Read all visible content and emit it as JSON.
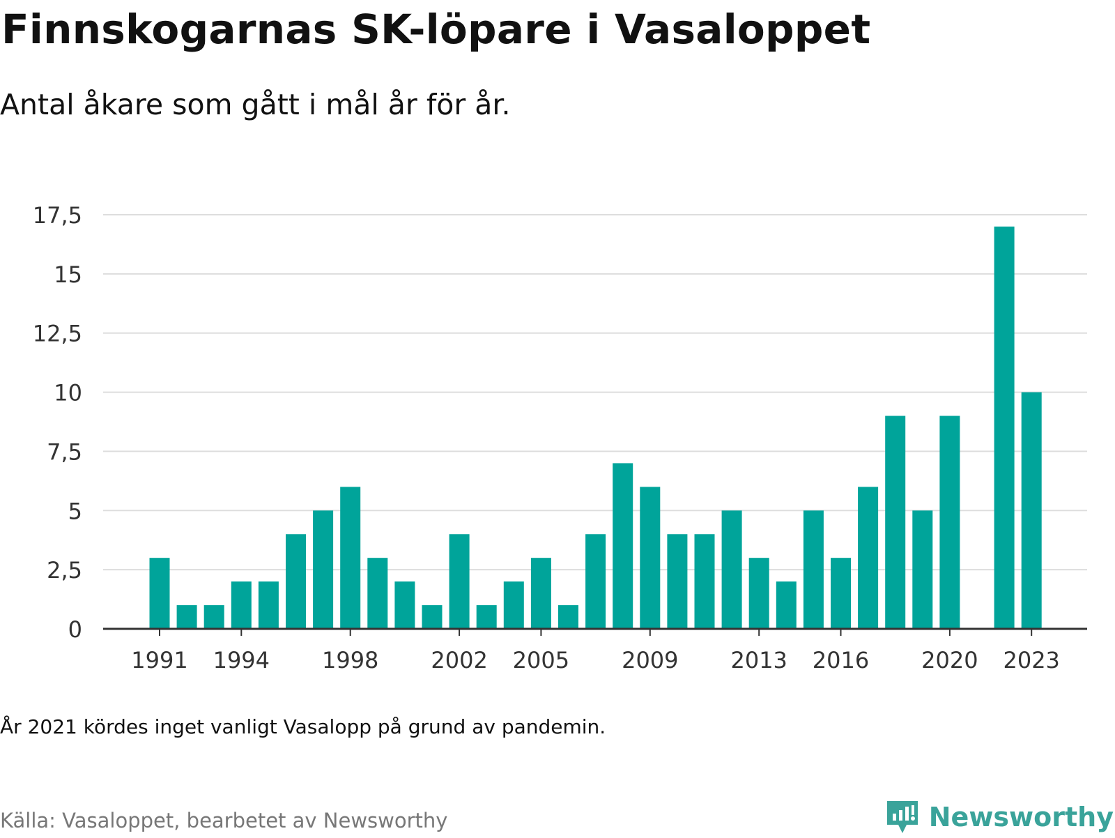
{
  "title": "Finnskogarnas SK-löpare i Vasaloppet",
  "subtitle": "Antal åkare som gått i mål år för år.",
  "note": "År 2021 kördes inget vanligt Vasalopp på grund av pandemin.",
  "source": "Källa: Vasaloppet, bearbetet av Newsworthy",
  "brand": {
    "name": "Newsworthy",
    "color": "#3aa39a",
    "icon": "newsworthy-logo-icon"
  },
  "colors": {
    "bar": "#00a49a",
    "grid": "#dddddd",
    "axis": "#333333",
    "text": "#333333"
  },
  "chart_data": {
    "type": "bar",
    "x": [
      1991,
      1992,
      1993,
      1994,
      1995,
      1996,
      1997,
      1998,
      1999,
      2000,
      2001,
      2002,
      2003,
      2004,
      2005,
      2006,
      2007,
      2008,
      2009,
      2010,
      2011,
      2012,
      2013,
      2014,
      2015,
      2016,
      2017,
      2018,
      2019,
      2020,
      2021,
      2022,
      2023
    ],
    "values": [
      3,
      1,
      1,
      2,
      2,
      4,
      5,
      6,
      3,
      2,
      1,
      4,
      1,
      2,
      3,
      1,
      4,
      7,
      6,
      4,
      4,
      5,
      3,
      2,
      5,
      3,
      6,
      9,
      5,
      9,
      null,
      17,
      10
    ],
    "x_ticks": [
      "1991",
      "1994",
      "1998",
      "2002",
      "2005",
      "2009",
      "2013",
      "2016",
      "2020",
      "2023"
    ],
    "y_ticks": [
      "0",
      "2,5",
      "5",
      "7,5",
      "10",
      "12,5",
      "15",
      "17,5"
    ],
    "ylim": [
      0,
      17.5
    ],
    "grid": true,
    "legend": "none",
    "xlabel": "",
    "ylabel": ""
  }
}
